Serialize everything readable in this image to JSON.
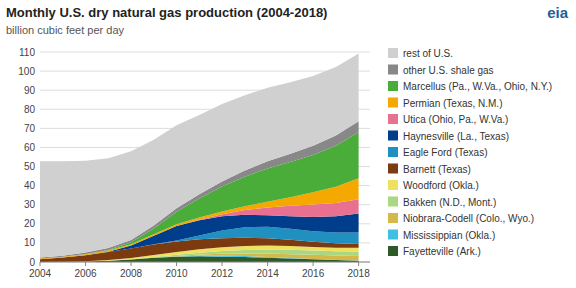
{
  "chart_data": {
    "type": "area",
    "stacked": true,
    "title": "Monthly U.S. dry natural gas production (2004-2018)",
    "subtitle": "billion cubic feet per day",
    "annotations": [
      "eia"
    ],
    "x": [
      2004,
      2005,
      2006,
      2007,
      2008,
      2009,
      2010,
      2011,
      2012,
      2013,
      2014,
      2015,
      2016,
      2017,
      2018
    ],
    "xlim": [
      2004,
      2018.5
    ],
    "xticks": [
      2004,
      2006,
      2008,
      2010,
      2012,
      2014,
      2016,
      2018
    ],
    "ylim": [
      0,
      110
    ],
    "yticks": [
      0,
      10,
      20,
      30,
      40,
      50,
      60,
      70,
      80,
      90,
      100,
      110
    ],
    "grid": true,
    "legend": "right",
    "series": [
      {
        "name": "Fayetteville (Ark.)",
        "color": "#2d5a27",
        "values": [
          0.0,
          0.1,
          0.3,
          0.7,
          1.3,
          2.2,
          2.8,
          3.0,
          2.8,
          2.6,
          2.2,
          1.8,
          1.4,
          1.0,
          0.7
        ]
      },
      {
        "name": "Mississippian (Okla.)",
        "color": "#40c0e0",
        "values": [
          0.0,
          0.0,
          0.0,
          0.0,
          0.0,
          0.0,
          0.1,
          0.3,
          0.5,
          0.5,
          0.4,
          0.3,
          0.2,
          0.1,
          0.1
        ]
      },
      {
        "name": "Niobrara-Codell (Colo., Wyo.)",
        "color": "#d4b84a",
        "values": [
          0.0,
          0.0,
          0.0,
          0.0,
          0.0,
          0.1,
          0.3,
          0.6,
          1.0,
          1.4,
          1.8,
          2.0,
          2.2,
          2.3,
          2.4
        ]
      },
      {
        "name": "Bakken (N.D., Mont.)",
        "color": "#aad882",
        "values": [
          0.0,
          0.0,
          0.0,
          0.0,
          0.1,
          0.3,
          0.6,
          1.0,
          1.4,
          1.8,
          2.2,
          2.3,
          2.2,
          2.2,
          2.3
        ]
      },
      {
        "name": "Woodford (Okla.)",
        "color": "#f0e060",
        "values": [
          0.0,
          0.0,
          0.1,
          0.3,
          0.7,
          1.1,
          1.5,
          1.8,
          2.0,
          2.1,
          2.1,
          2.0,
          1.9,
          1.9,
          2.0
        ]
      },
      {
        "name": "Barnett (Texas)",
        "color": "#7b3a10",
        "values": [
          1.5,
          2.2,
          3.2,
          4.2,
          5.0,
          5.5,
          5.5,
          5.2,
          4.8,
          4.3,
          3.8,
          3.2,
          2.7,
          2.3,
          1.9
        ]
      },
      {
        "name": "Eagle Ford (Texas)",
        "color": "#2090c0",
        "values": [
          0.0,
          0.0,
          0.0,
          0.0,
          0.0,
          0.1,
          0.5,
          2.0,
          4.0,
          5.5,
          6.0,
          5.8,
          5.5,
          5.6,
          6.0
        ]
      },
      {
        "name": "Haynesville (La., Texas)",
        "color": "#003d8a",
        "values": [
          0.0,
          0.0,
          0.0,
          0.2,
          1.5,
          4.5,
          7.5,
          8.0,
          7.5,
          6.5,
          6.0,
          6.5,
          7.5,
          8.5,
          10.0
        ]
      },
      {
        "name": "Utica (Ohio, Pa., W.Va.)",
        "color": "#e87090",
        "values": [
          0.0,
          0.0,
          0.0,
          0.0,
          0.0,
          0.0,
          0.0,
          0.2,
          1.0,
          2.5,
          4.0,
          5.5,
          6.5,
          7.0,
          7.5
        ]
      },
      {
        "name": "Permian (Texas, N.M.)",
        "color": "#f5a800",
        "values": [
          0.3,
          0.4,
          0.5,
          0.6,
          0.7,
          0.8,
          1.0,
          1.2,
          1.5,
          2.0,
          3.0,
          4.5,
          6.5,
          8.5,
          11.0
        ]
      },
      {
        "name": "Marcellus (Pa., W.Va., Ohio, N.Y.)",
        "color": "#4aad3a",
        "values": [
          0.0,
          0.0,
          0.1,
          0.3,
          1.0,
          3.0,
          6.5,
          10.0,
          13.0,
          15.5,
          17.5,
          18.5,
          19.5,
          21.5,
          24.0
        ]
      },
      {
        "name": "other U.S. shale gas",
        "color": "#888888",
        "values": [
          0.5,
          0.6,
          0.8,
          1.0,
          1.2,
          1.5,
          1.8,
          2.2,
          2.7,
          3.2,
          3.8,
          4.3,
          4.8,
          5.3,
          5.8
        ]
      },
      {
        "name": "rest of U.S.",
        "color": "#d0d0d0",
        "values": [
          50.5,
          49.5,
          48.0,
          47.0,
          46.5,
          45.0,
          43.5,
          41.5,
          40.5,
          39.5,
          38.5,
          37.5,
          36.5,
          36.0,
          35.5
        ]
      }
    ]
  }
}
